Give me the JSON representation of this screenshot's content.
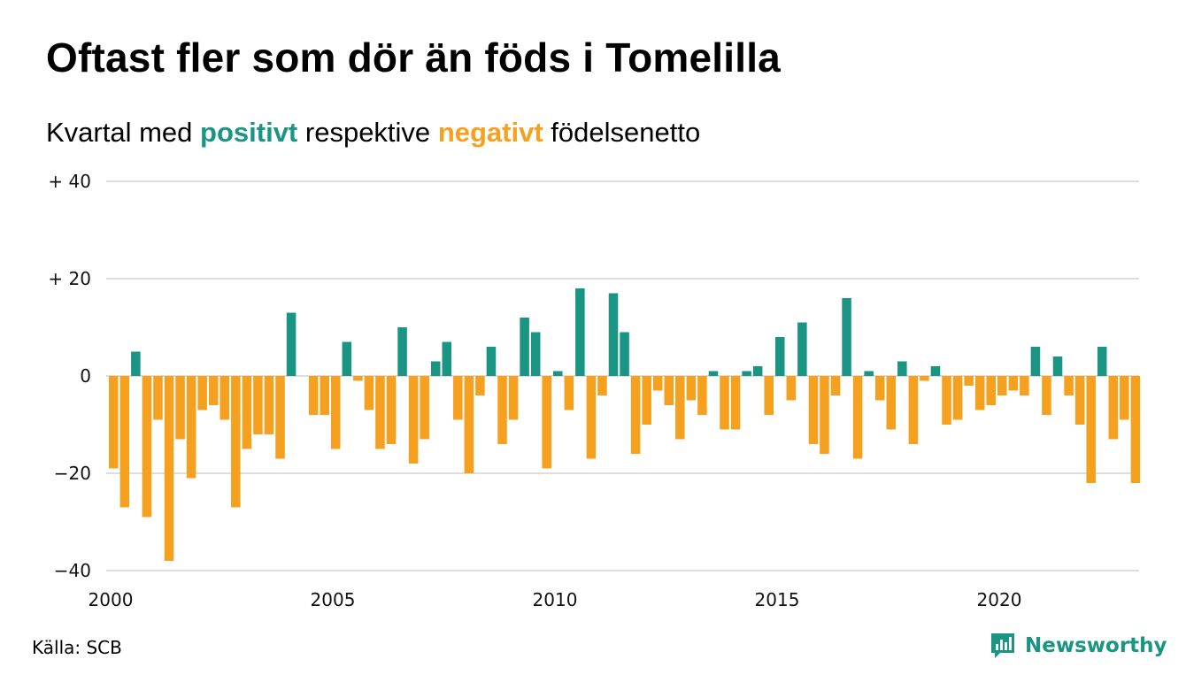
{
  "title": "Oftast fler som dör än föds i Tomelilla",
  "subtitle": {
    "prefix": "Kvartal med",
    "positive": "positivt",
    "middle": "respektive",
    "negative": "negativt",
    "suffix": "födelsenetto"
  },
  "colors": {
    "positive": "#1b9583",
    "negative": "#f5a01f",
    "grid": "#dddddd",
    "brand": "#1b9583"
  },
  "source": "Källa: SCB",
  "brand": {
    "name": "Newsworthy",
    "icon": "chart-logo-icon"
  },
  "chart_data": {
    "type": "bar",
    "x_start": 2000.0,
    "x_step": 0.25,
    "xlim": [
      2000,
      2023.5
    ],
    "ylim": [
      -42,
      42
    ],
    "x_ticks": [
      {
        "value": 2000,
        "label": "2000"
      },
      {
        "value": 2005,
        "label": "2005"
      },
      {
        "value": 2010,
        "label": "2010"
      },
      {
        "value": 2015,
        "label": "2015"
      },
      {
        "value": 2020,
        "label": "2020"
      }
    ],
    "y_ticks": [
      {
        "value": 40,
        "label": "+ 40"
      },
      {
        "value": 20,
        "label": "+ 20"
      },
      {
        "value": 0,
        "label": "0"
      },
      {
        "value": -20,
        "label": "−20"
      },
      {
        "value": -40,
        "label": "−40"
      }
    ],
    "grid": true,
    "values": [
      -19,
      -27,
      5,
      -29,
      -9,
      -38,
      -13,
      -21,
      -7,
      -6,
      -9,
      -27,
      -15,
      -12,
      -12,
      -17,
      13,
      0,
      -8,
      -8,
      -15,
      7,
      -1,
      -7,
      -15,
      -14,
      10,
      -18,
      -13,
      3,
      7,
      -9,
      -20,
      -4,
      6,
      -14,
      -9,
      12,
      9,
      -19,
      1,
      -7,
      18,
      -17,
      -4,
      17,
      9,
      -16,
      -10,
      -3,
      -6,
      -13,
      -5,
      -8,
      1,
      -11,
      -11,
      1,
      2,
      -8,
      8,
      -5,
      11,
      -14,
      -16,
      -4,
      16,
      -17,
      1,
      -5,
      -11,
      3,
      -14,
      -1,
      2,
      -10,
      -9,
      -2,
      -7,
      -6,
      -4,
      -3,
      -4,
      6,
      -8,
      4,
      -4,
      -10,
      -22,
      6,
      -13,
      -9,
      -22
    ]
  }
}
